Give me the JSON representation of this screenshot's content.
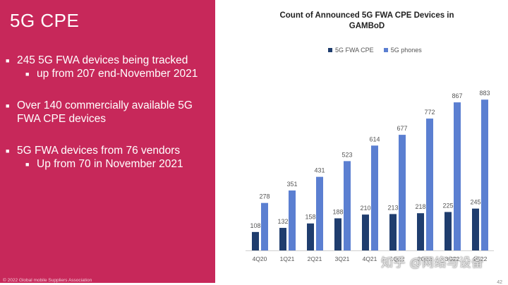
{
  "slide": {
    "title": "5G CPE",
    "bullets": [
      {
        "text": "245 5G FWA devices being tracked",
        "sub": [
          "up from 207 end-November 2021"
        ]
      },
      {
        "text": "Over 140 commercially available 5G FWA CPE devices",
        "sub": []
      },
      {
        "text": "5G FWA devices from 76 vendors",
        "sub": [
          "Up from 70 in November 2021"
        ]
      }
    ],
    "footer": "© 2022 Global mobile Suppliers Association",
    "page_number": "42"
  },
  "watermark": "知乎 @网络与设备",
  "colors": {
    "panel": "#c7285a",
    "fwa": "#1f3d6e",
    "phones": "#5b7fd1",
    "label": "#555555"
  },
  "chart_data": {
    "type": "bar",
    "title": "Count of Announced 5G FWA CPE Devices in GAMBoD",
    "categories": [
      "4Q20",
      "1Q21",
      "2Q21",
      "3Q21",
      "4Q21",
      "1Q22",
      "2Q22",
      "3Q22",
      "4Q22"
    ],
    "series": [
      {
        "name": "5G FWA CPE",
        "values": [
          108,
          132,
          158,
          188,
          210,
          213,
          218,
          225,
          245
        ]
      },
      {
        "name": "5G phones",
        "values": [
          278,
          351,
          431,
          523,
          614,
          677,
          772,
          867,
          883
        ]
      }
    ],
    "xlabel": "",
    "ylabel": "",
    "ylim": [
      0,
      950
    ],
    "legend": "top",
    "grid": false
  }
}
